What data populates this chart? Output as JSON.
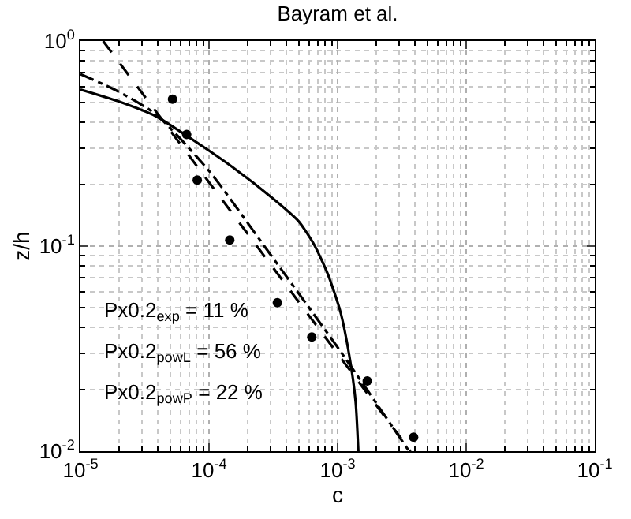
{
  "chart_data": {
    "type": "line",
    "title": "Bayram et al.",
    "xlabel": "c",
    "ylabel": "z/h",
    "log": "xy",
    "grid": true,
    "xlim": [
      1e-05,
      0.1
    ],
    "ylim": [
      0.01,
      1
    ],
    "xticks": [
      {
        "value": 1e-05,
        "label": "10$^{-5}$"
      },
      {
        "value": 0.0001,
        "label": "10$^{-4}$"
      },
      {
        "value": 0.001,
        "label": "10$^{-3}$"
      },
      {
        "value": 0.01,
        "label": "10$^{-2}$"
      },
      {
        "value": 0.1,
        "label": "10$^{-1}$"
      }
    ],
    "yticks": [
      {
        "value": 0.01,
        "label": "10$^{-2}$"
      },
      {
        "value": 0.1,
        "label": "10$^{-1}$"
      },
      {
        "value": 1,
        "label": "10$^{0}$"
      }
    ],
    "series": [
      {
        "type": "scatter",
        "color": "#000000",
        "marker": "circle",
        "x": [
          5.2e-05,
          6.7e-05,
          8.1e-05,
          0.000145,
          0.00034,
          0.00063,
          0.0017,
          0.0039
        ],
        "values": [
          0.52,
          0.35,
          0.21,
          0.107,
          0.053,
          0.036,
          0.022,
          0.0117
        ]
      },
      {
        "type": "line",
        "color": "#000000",
        "line_style": "solid",
        "x": [
          1e-05,
          1.94e-05,
          3.85e-05,
          6.7e-05,
          0.000152,
          0.00032,
          0.000498,
          0.000655,
          0.00084,
          0.00105,
          0.00123,
          0.00138,
          0.00145
        ],
        "values": [
          0.58,
          0.51,
          0.43,
          0.345,
          0.243,
          0.169,
          0.132,
          0.102,
          0.073,
          0.048,
          0.0295,
          0.0175,
          0.01
        ]
      },
      {
        "type": "line",
        "color": "#000000",
        "line_style": "dashed",
        "x": [
          1.5e-05,
          0.0037
        ],
        "values": [
          1,
          0.01
        ]
      },
      {
        "type": "line",
        "color": "#000000",
        "line_style": "dashdot",
        "x": [
          1e-05,
          1.94e-05,
          3.85e-05,
          0.000101,
          0.000279,
          0.00104,
          0.0036
        ],
        "values": [
          0.69,
          0.57,
          0.44,
          0.231,
          0.097,
          0.031,
          0.01
        ]
      }
    ],
    "annotations": [
      "Px0.2$_{exp}$ = 11 %",
      "Px0.2$_{powL}$ = 56 %",
      "Px0.2$_{powP}$ = 22 %"
    ]
  }
}
